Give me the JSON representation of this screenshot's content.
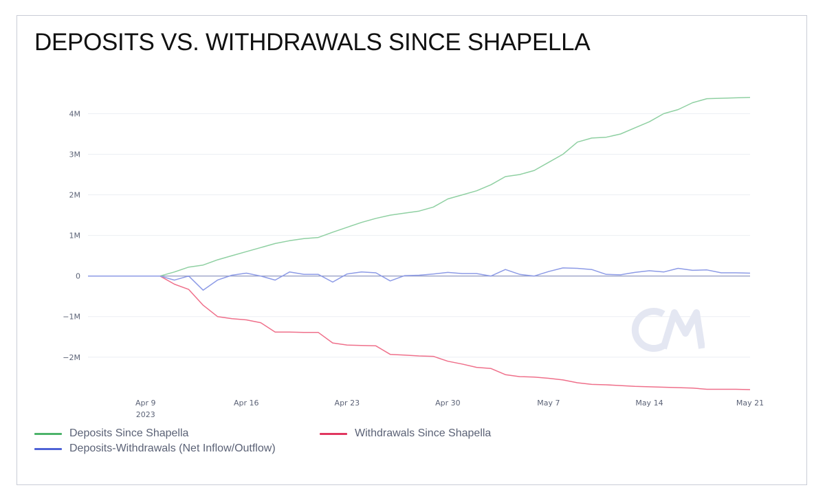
{
  "chart_data": {
    "type": "line",
    "title": "DEPOSITS VS. WITHDRAWALS SINCE SHAPELLA",
    "xlabel": "",
    "ylabel": "",
    "x_start": "2023-04-05",
    "x_end": "2023-05-21",
    "ylim": [
      -2850000,
      4600000
    ],
    "y_ticks": [
      {
        "value": 4000000,
        "label": "4M"
      },
      {
        "value": 3000000,
        "label": "3M"
      },
      {
        "value": 2000000,
        "label": "2M"
      },
      {
        "value": 1000000,
        "label": "1M"
      },
      {
        "value": 0,
        "label": "0"
      },
      {
        "value": -1000000,
        "label": "−1M"
      },
      {
        "value": -2000000,
        "label": "−2M"
      }
    ],
    "x_ticks": [
      {
        "date": "2023-04-09",
        "label": "Apr 9",
        "sublabel": "2023"
      },
      {
        "date": "2023-04-16",
        "label": "Apr 16",
        "sublabel": ""
      },
      {
        "date": "2023-04-23",
        "label": "Apr 23",
        "sublabel": ""
      },
      {
        "date": "2023-04-30",
        "label": "Apr 30",
        "sublabel": ""
      },
      {
        "date": "2023-05-07",
        "label": "May 7",
        "sublabel": ""
      },
      {
        "date": "2023-05-14",
        "label": "May 14",
        "sublabel": ""
      },
      {
        "date": "2023-05-21",
        "label": "May 21",
        "sublabel": ""
      }
    ],
    "grid": true,
    "legend_position": "bottom-left",
    "x": [
      "2023-04-05",
      "2023-04-06",
      "2023-04-07",
      "2023-04-08",
      "2023-04-09",
      "2023-04-10",
      "2023-04-11",
      "2023-04-12",
      "2023-04-13",
      "2023-04-14",
      "2023-04-15",
      "2023-04-16",
      "2023-04-17",
      "2023-04-18",
      "2023-04-19",
      "2023-04-20",
      "2023-04-21",
      "2023-04-22",
      "2023-04-23",
      "2023-04-24",
      "2023-04-25",
      "2023-04-26",
      "2023-04-27",
      "2023-04-28",
      "2023-04-29",
      "2023-04-30",
      "2023-05-01",
      "2023-05-02",
      "2023-05-03",
      "2023-05-04",
      "2023-05-05",
      "2023-05-06",
      "2023-05-07",
      "2023-05-08",
      "2023-05-09",
      "2023-05-10",
      "2023-05-11",
      "2023-05-12",
      "2023-05-13",
      "2023-05-14",
      "2023-05-15",
      "2023-05-16",
      "2023-05-17",
      "2023-05-18",
      "2023-05-19",
      "2023-05-20",
      "2023-05-21"
    ],
    "series": [
      {
        "name": "Deposits Since Shapella",
        "color": "#4cb36a",
        "values": [
          0,
          0,
          0,
          0,
          0,
          0,
          100000,
          220000,
          270000,
          400000,
          500000,
          600000,
          700000,
          800000,
          870000,
          920000,
          950000,
          1080000,
          1200000,
          1320000,
          1420000,
          1500000,
          1550000,
          1600000,
          1700000,
          1900000,
          2000000,
          2100000,
          2250000,
          2450000,
          2500000,
          2600000,
          2800000,
          3000000,
          3300000,
          3400000,
          3420000,
          3500000,
          3650000,
          3800000,
          4000000,
          4100000,
          4270000,
          4370000,
          4380000,
          4390000,
          4400000
        ]
      },
      {
        "name": "Withdrawals Since Shapella",
        "color": "#e0365f",
        "values": [
          0,
          0,
          0,
          0,
          0,
          0,
          -200000,
          -330000,
          -720000,
          -1000000,
          -1050000,
          -1080000,
          -1150000,
          -1380000,
          -1380000,
          -1390000,
          -1390000,
          -1650000,
          -1700000,
          -1710000,
          -1720000,
          -1930000,
          -1950000,
          -1970000,
          -1980000,
          -2100000,
          -2170000,
          -2250000,
          -2280000,
          -2430000,
          -2480000,
          -2490000,
          -2520000,
          -2560000,
          -2630000,
          -2670000,
          -2680000,
          -2700000,
          -2720000,
          -2730000,
          -2740000,
          -2750000,
          -2760000,
          -2790000,
          -2790000,
          -2790000,
          -2800000
        ]
      },
      {
        "name": "Deposits-Withdrawals (Net Inflow/Outflow)",
        "color": "#4f63d6",
        "values": [
          0,
          0,
          0,
          0,
          0,
          0,
          -100000,
          0,
          -350000,
          -100000,
          20000,
          70000,
          0,
          -100000,
          100000,
          40000,
          40000,
          -150000,
          50000,
          100000,
          80000,
          -120000,
          10000,
          20000,
          50000,
          90000,
          60000,
          60000,
          0,
          160000,
          40000,
          0,
          110000,
          200000,
          190000,
          160000,
          40000,
          30000,
          90000,
          130000,
          100000,
          190000,
          140000,
          150000,
          80000,
          80000,
          70000
        ]
      }
    ]
  },
  "watermark": "CM"
}
